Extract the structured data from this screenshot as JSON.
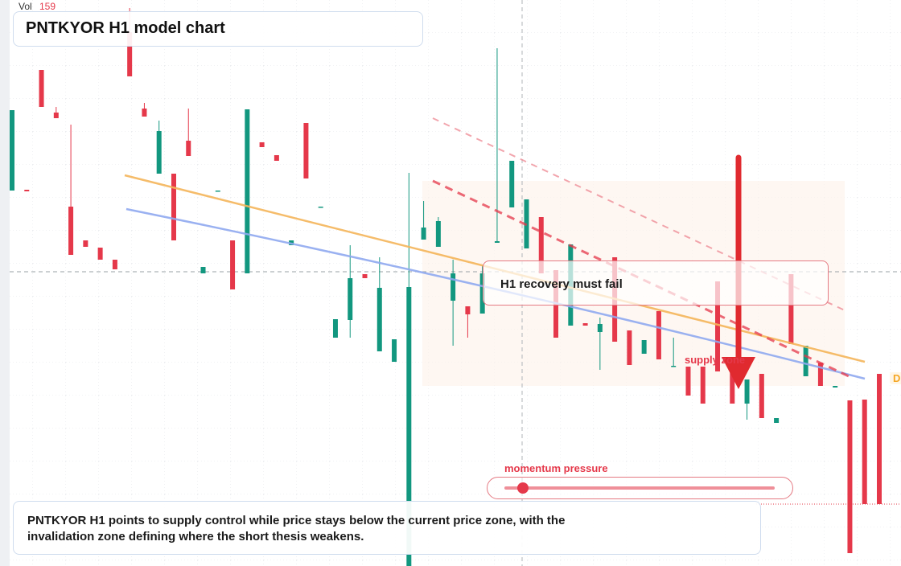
{
  "chart_data": {
    "type": "candlestick",
    "title": "PNTKYOR H1 model chart",
    "volume_label": "Vol",
    "volume_value": 159,
    "annotation": "H1 recovery must fail",
    "zone_label": "supply zone",
    "momentum_label": "momentum pressure",
    "price_tag": "D",
    "summary": "PNTKYOR H1 points to supply control while price stays below the current price zone, with the invalidation zone defining where the short thesis weakens.",
    "up_color": "#12977f",
    "down_color": "#e5384a",
    "ylim": [
      0,
      70.4
    ],
    "open": [
      46.7,
      46.8,
      61.7,
      56.4,
      44.7,
      40.5,
      39.6,
      38.1,
      66.4,
      56.9,
      48.8,
      48.8,
      52.9,
      36.4,
      46.6,
      40.5,
      36.4,
      52.7,
      51.1,
      39.9,
      55.1,
      44.6,
      28.4,
      30.6,
      36.3,
      26.7,
      25.4,
      0,
      40.6,
      39.7,
      33.0,
      32.3,
      31.4,
      40.2,
      44.6,
      39.5,
      43.4,
      36.8,
      29.9,
      30.2,
      29.1,
      38.4,
      29.3,
      26.4,
      31.7,
      24.8,
      24.8,
      24.8,
      35.4,
      24.9,
      20.2,
      23.9,
      17.8,
      36.3,
      23.6,
      25.3,
      22.2,
      20.6,
      20.7,
      23.9
    ],
    "high": [
      56.7,
      46.8,
      61.7,
      57.1,
      54.9,
      40.5,
      39.6,
      38.1,
      69.4,
      57.6,
      55.4,
      48.8,
      56.9,
      37.2,
      46.7,
      40.5,
      56.8,
      52.7,
      51.1,
      40.5,
      55.1,
      44.7,
      30.7,
      39.9,
      36.3,
      38.4,
      28.2,
      48.9,
      45.4,
      43.4,
      38.1,
      32.3,
      37.4,
      64.4,
      50.4,
      45.6,
      43.4,
      36.8,
      40.0,
      30.2,
      30.9,
      38.4,
      29.3,
      28.1,
      31.7,
      28.4,
      24.8,
      24.8,
      35.4,
      24.9,
      23.2,
      23.9,
      18.4,
      36.3,
      27.4,
      25.3,
      22.4,
      20.6,
      20.7,
      23.9
    ],
    "low": [
      46.7,
      46.6,
      57.1,
      55.7,
      38.7,
      39.7,
      38.1,
      36.9,
      60.9,
      55.9,
      48.8,
      40.5,
      51.0,
      36.4,
      46.6,
      34.4,
      36.4,
      52.1,
      50.4,
      39.9,
      48.2,
      44.6,
      28.4,
      28.4,
      35.8,
      26.7,
      25.4,
      0,
      40.6,
      39.7,
      27.4,
      28.4,
      31.4,
      40.2,
      44.6,
      39.5,
      36.4,
      28.4,
      29.9,
      29.9,
      24.4,
      27.9,
      25.0,
      26.4,
      25.7,
      24.8,
      21.2,
      20.2,
      24.2,
      20.2,
      18.2,
      18.4,
      17.8,
      27.6,
      23.6,
      22.4,
      22.2,
      1.6,
      7.7,
      7.7
    ],
    "close": [
      56.7,
      46.6,
      57.1,
      55.7,
      38.7,
      39.7,
      38.1,
      36.9,
      60.9,
      55.9,
      54.1,
      40.5,
      51.0,
      37.2,
      46.7,
      34.4,
      56.8,
      52.1,
      50.4,
      40.5,
      48.2,
      44.7,
      30.7,
      35.8,
      35.8,
      34.6,
      28.2,
      34.7,
      42.1,
      42.9,
      36.4,
      31.3,
      36.4,
      40.4,
      50.4,
      45.6,
      36.4,
      28.4,
      40.0,
      29.9,
      30.1,
      27.9,
      25.0,
      28.1,
      25.7,
      24.9,
      21.2,
      20.2,
      24.2,
      20.2,
      23.2,
      18.4,
      18.4,
      27.6,
      27.4,
      22.4,
      22.4,
      1.6,
      7.7,
      7.7
    ]
  }
}
